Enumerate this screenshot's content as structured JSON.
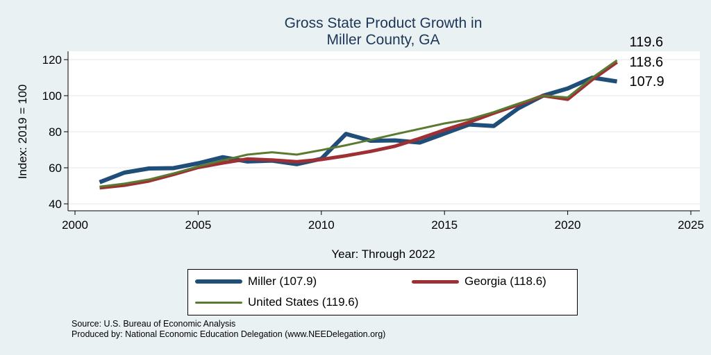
{
  "chart_data": {
    "type": "line",
    "title": [
      "Gross State Product Growth in",
      "Miller County, GA"
    ],
    "xlabel": "Year: Through 2022",
    "ylabel": "Index: 2019 = 100",
    "xlim": [
      2000,
      2025
    ],
    "ylim": [
      40,
      124
    ],
    "xticks": [
      2000,
      2005,
      2010,
      2015,
      2020,
      2025
    ],
    "yticks": [
      40,
      60,
      80,
      100,
      120
    ],
    "grid": true,
    "legend_position": "bottom",
    "x": [
      2001,
      2002,
      2003,
      2004,
      2005,
      2006,
      2007,
      2008,
      2009,
      2010,
      2011,
      2012,
      2013,
      2014,
      2015,
      2016,
      2017,
      2018,
      2019,
      2020,
      2021,
      2022
    ],
    "series": [
      {
        "name": "Miller",
        "legend_label": "Miller  (107.9)",
        "end_label": "107.9",
        "color": "#1f4e79",
        "width": 6,
        "values": [
          52.0,
          57.3,
          59.6,
          59.8,
          62.5,
          65.9,
          63.5,
          64.0,
          62.0,
          65.0,
          78.8,
          75.0,
          75.2,
          74.0,
          79.0,
          84.0,
          83.2,
          93.0,
          100.0,
          104.0,
          110.0,
          107.9
        ]
      },
      {
        "name": "Georgia",
        "legend_label": "Georgia (118.6)",
        "end_label": "118.6",
        "color": "#9e3035",
        "width": 5,
        "values": [
          48.9,
          50.3,
          52.7,
          56.3,
          60.2,
          62.7,
          64.9,
          64.3,
          63.4,
          64.6,
          66.7,
          69.1,
          72.0,
          76.3,
          81.0,
          85.3,
          90.3,
          95.0,
          100.0,
          98.0,
          109.0,
          118.6
        ]
      },
      {
        "name": "United States",
        "legend_label": "United States (119.6)",
        "end_label": "119.6",
        "color": "#5a7a32",
        "width": 3,
        "values": [
          49.5,
          51.2,
          53.5,
          56.9,
          60.7,
          64.1,
          67.3,
          68.6,
          67.3,
          69.8,
          72.5,
          75.5,
          78.6,
          81.6,
          84.6,
          86.9,
          90.9,
          95.6,
          100.0,
          99.0,
          110.0,
          119.6
        ]
      }
    ]
  },
  "footer": {
    "source": "Source: U.S. Bureau of Economic Analysis",
    "produced": "Produced by: National Economic Education Delegation (www.NEEDelegation.org)"
  }
}
